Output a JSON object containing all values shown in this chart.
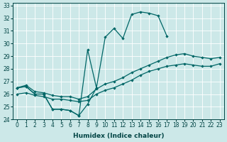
{
  "xlabel": "Humidex (Indice chaleur)",
  "color": "#006666",
  "bg_color": "#cce8e8",
  "xlim": [
    -0.5,
    23.5
  ],
  "ylim": [
    24,
    33.2
  ],
  "yticks": [
    24,
    25,
    26,
    27,
    28,
    29,
    30,
    31,
    32,
    33
  ],
  "xticks": [
    0,
    1,
    2,
    3,
    4,
    5,
    6,
    7,
    8,
    9,
    10,
    11,
    12,
    13,
    14,
    15,
    16,
    17,
    18,
    19,
    20,
    21,
    22,
    23
  ],
  "line_bottom_x": [
    0,
    1,
    2,
    3,
    4,
    5,
    6,
    7,
    8,
    9
  ],
  "line_bottom_y": [
    26.5,
    26.6,
    26.0,
    26.0,
    24.8,
    24.8,
    24.7,
    24.3,
    25.2,
    26.5
  ],
  "line_top_x": [
    0,
    1,
    2,
    3,
    4,
    5,
    6,
    7,
    8,
    9,
    10,
    11,
    12,
    13,
    14,
    15,
    16,
    17,
    18,
    19,
    20,
    21,
    22,
    23
  ],
  "line_top_y": [
    26.5,
    26.6,
    26.0,
    26.0,
    24.8,
    24.8,
    24.7,
    24.3,
    29.5,
    26.5,
    30.5,
    31.2,
    30.4,
    32.3,
    32.5,
    32.4,
    32.2,
    30.6,
    null,
    null,
    null,
    null,
    null,
    null
  ],
  "line_mid1_x": [
    0,
    1,
    2,
    3,
    4,
    5,
    6,
    7,
    8,
    9,
    10,
    11,
    12,
    13,
    14,
    15,
    16,
    17,
    18,
    19,
    20,
    21,
    22,
    23
  ],
  "line_mid1_y": [
    26.0,
    26.1,
    25.9,
    25.8,
    25.6,
    25.6,
    25.5,
    25.4,
    25.5,
    26.0,
    26.3,
    26.5,
    26.8,
    27.1,
    27.5,
    27.8,
    28.0,
    28.2,
    28.3,
    28.4,
    28.3,
    28.2,
    28.2,
    28.4
  ],
  "line_mid2_x": [
    0,
    1,
    2,
    3,
    4,
    5,
    6,
    7,
    8,
    9,
    10,
    11,
    12,
    13,
    14,
    15,
    16,
    17,
    18,
    19,
    20,
    21,
    22,
    23
  ],
  "line_mid2_y": [
    26.5,
    26.7,
    26.2,
    26.1,
    25.9,
    25.8,
    25.8,
    25.6,
    25.8,
    26.4,
    26.8,
    27.0,
    27.3,
    27.7,
    28.0,
    28.3,
    28.6,
    28.9,
    29.1,
    29.2,
    29.0,
    28.9,
    28.8,
    28.9
  ]
}
